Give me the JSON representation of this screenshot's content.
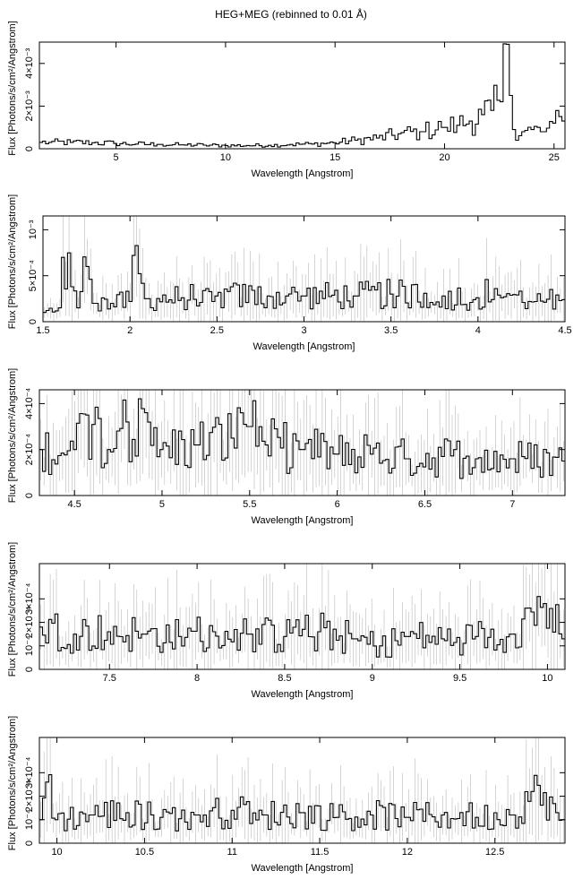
{
  "title": "HEG+MEG (rebinned to 0.01 Å)",
  "chart_data": [
    {
      "type": "line",
      "xlabel": "Wavelength [Angstrom]",
      "ylabel": "Flux [Photons/s/cm²/Angstrom]",
      "xlim": [
        1.5,
        25.5
      ],
      "ylim": [
        0,
        0.005
      ],
      "xticks": [
        {
          "v": 5,
          "label": "5"
        },
        {
          "v": 10,
          "label": "10"
        },
        {
          "v": 15,
          "label": "15"
        },
        {
          "v": 20,
          "label": "20"
        },
        {
          "v": 25,
          "label": "25"
        }
      ],
      "yticks": [
        {
          "v": 0,
          "label": "0"
        },
        {
          "v": 0.002,
          "label": "2×10⁻³"
        },
        {
          "v": 0.004,
          "label": "4×10⁻³"
        }
      ],
      "series": [
        {
          "x": [
            1.5,
            2.0,
            3.0,
            4.0,
            5.0,
            6.0,
            7.0,
            8.0,
            9.0,
            10.0,
            11.0,
            12.0,
            13.0,
            14.0,
            15.0,
            16.0,
            17.0,
            18.0,
            19.0,
            20.0,
            20.6,
            21.2,
            21.8,
            22.2,
            22.6,
            22.9,
            23.2,
            23.6,
            24.0,
            24.5,
            25.0,
            25.5
          ],
          "y": [
            0.0003,
            0.0003,
            0.0003,
            0.00028,
            0.00025,
            0.00022,
            0.0002,
            0.00018,
            0.00017,
            0.00015,
            0.00015,
            0.00016,
            0.0002,
            0.00022,
            0.00028,
            0.0004,
            0.0005,
            0.0007,
            0.0008,
            0.001,
            0.0011,
            0.0013,
            0.0016,
            0.0018,
            0.0022,
            0.0049,
            0.0009,
            0.0008,
            0.0009,
            0.0008,
            0.0012,
            0.0013
          ]
        }
      ]
    },
    {
      "type": "line",
      "xlabel": "Wavelength [Angstrom]",
      "ylabel": "Flux [Photons/s/cm²/Angstrom]",
      "xlim": [
        1.5,
        4.5
      ],
      "ylim": [
        0,
        0.00115
      ],
      "xticks": [
        {
          "v": 1.5,
          "label": "1.5"
        },
        {
          "v": 2,
          "label": "2"
        },
        {
          "v": 2.5,
          "label": "2.5"
        },
        {
          "v": 3,
          "label": "3"
        },
        {
          "v": 3.5,
          "label": "3.5"
        },
        {
          "v": 4,
          "label": "4"
        },
        {
          "v": 4.5,
          "label": "4.5"
        }
      ],
      "yticks": [
        {
          "v": 0,
          "label": "0"
        },
        {
          "v": 0.0005,
          "label": "5×10⁻⁴"
        },
        {
          "v": 0.001,
          "label": "10⁻³"
        }
      ],
      "series": [
        {
          "x": [
            1.5,
            1.6,
            1.62,
            1.7,
            1.75,
            1.8,
            1.9,
            2.0,
            2.02,
            2.1,
            2.3,
            2.5,
            2.8,
            3.0,
            3.3,
            3.5,
            3.8,
            4.0,
            4.1,
            4.3,
            4.5
          ],
          "y": [
            0.0001,
            0.00015,
            0.0007,
            0.00015,
            0.0006,
            0.0002,
            0.0002,
            0.00022,
            0.00072,
            0.00025,
            0.00026,
            0.00028,
            0.00028,
            0.00028,
            0.00028,
            0.0003,
            0.00028,
            0.00026,
            0.00036,
            0.00022,
            0.00024
          ]
        }
      ]
    },
    {
      "type": "line",
      "xlabel": "Wavelength [Angstrom]",
      "ylabel": "Flux [Photons/s/cm²/Angstrom]",
      "xlim": [
        4.3,
        7.3
      ],
      "ylim": [
        0,
        0.00046
      ],
      "xticks": [
        {
          "v": 4.5,
          "label": "4.5"
        },
        {
          "v": 5,
          "label": "5"
        },
        {
          "v": 5.5,
          "label": "5.5"
        },
        {
          "v": 6,
          "label": "6"
        },
        {
          "v": 6.5,
          "label": "6.5"
        },
        {
          "v": 7,
          "label": "7"
        }
      ],
      "yticks": [
        {
          "v": 0,
          "label": "0"
        },
        {
          "v": 0.0002,
          "label": "2×10⁻⁴"
        },
        {
          "v": 0.0004,
          "label": "4×10⁻⁴"
        }
      ],
      "series": [
        {
          "x": [
            4.3,
            4.5,
            4.57,
            4.7,
            4.8,
            5.0,
            5.2,
            5.4,
            5.45,
            5.5,
            5.6,
            5.8,
            6.0,
            6.2,
            6.4,
            6.6,
            6.8,
            7.0,
            7.3
          ],
          "y": [
            0.0002,
            0.0002,
            0.00035,
            0.0002,
            0.00032,
            0.0002,
            0.00022,
            0.00025,
            0.00036,
            0.0003,
            0.00022,
            0.0002,
            0.00018,
            0.00018,
            0.00016,
            0.00017,
            0.00016,
            0.00016,
            0.00015
          ]
        }
      ]
    },
    {
      "type": "line",
      "xlabel": "Wavelength [Angstrom]",
      "ylabel": "Flux [Photons/s/cm²/Angstrom]",
      "xlim": [
        7.1,
        10.1
      ],
      "ylim": [
        0,
        0.00045
      ],
      "xticks": [
        {
          "v": 7.5,
          "label": "7.5"
        },
        {
          "v": 8,
          "label": "8"
        },
        {
          "v": 8.5,
          "label": "8.5"
        },
        {
          "v": 9,
          "label": "9"
        },
        {
          "v": 9.5,
          "label": "9.5"
        },
        {
          "v": 10,
          "label": "10"
        }
      ],
      "yticks": [
        {
          "v": 0,
          "label": "0"
        },
        {
          "v": 0.0001,
          "label": "10⁻⁴"
        },
        {
          "v": 0.0002,
          "label": "2×10⁻⁴"
        },
        {
          "v": 0.0003,
          "label": "3×10⁻⁴"
        }
      ],
      "series": [
        {
          "x": [
            7.1,
            7.3,
            7.5,
            7.7,
            7.9,
            8.1,
            8.3,
            8.5,
            8.7,
            8.9,
            9.05,
            9.2,
            9.4,
            9.6,
            9.8,
            9.98,
            10.1
          ],
          "y": [
            0.00018,
            0.00015,
            0.00016,
            0.00015,
            0.00014,
            0.00016,
            0.00015,
            0.00014,
            0.00016,
            0.00013,
            0.0001,
            0.00014,
            0.00013,
            0.00014,
            0.00015,
            0.00028,
            0.00013
          ]
        }
      ]
    },
    {
      "type": "line",
      "xlabel": "Wavelength [Angstrom]",
      "ylabel": "Flux [Photons/s/cm²/Angstrom]",
      "xlim": [
        9.9,
        12.9
      ],
      "ylim": [
        0,
        0.00045
      ],
      "xticks": [
        {
          "v": 10,
          "label": "10"
        },
        {
          "v": 10.5,
          "label": "10.5"
        },
        {
          "v": 11,
          "label": "11"
        },
        {
          "v": 11.5,
          "label": "11.5"
        },
        {
          "v": 12,
          "label": "12"
        },
        {
          "v": 12.5,
          "label": "12.5"
        }
      ],
      "yticks": [
        {
          "v": 0,
          "label": "0"
        },
        {
          "v": 0.0001,
          "label": "10⁻⁴"
        },
        {
          "v": 0.0002,
          "label": "2×10⁻⁴"
        },
        {
          "v": 0.0003,
          "label": "3×10⁻⁴"
        }
      ],
      "series": [
        {
          "x": [
            9.9,
            9.95,
            10.0,
            10.2,
            10.4,
            10.6,
            10.8,
            11.0,
            11.2,
            11.4,
            11.6,
            11.8,
            12.0,
            12.2,
            12.4,
            12.6,
            12.72,
            12.9
          ],
          "y": [
            0.0001,
            0.00026,
            0.0001,
            0.00012,
            0.00013,
            0.00011,
            0.00012,
            0.00014,
            0.00012,
            0.00013,
            0.00011,
            0.00012,
            0.00011,
            0.00012,
            0.00011,
            0.00012,
            0.00022,
            0.0001
          ]
        }
      ]
    }
  ]
}
